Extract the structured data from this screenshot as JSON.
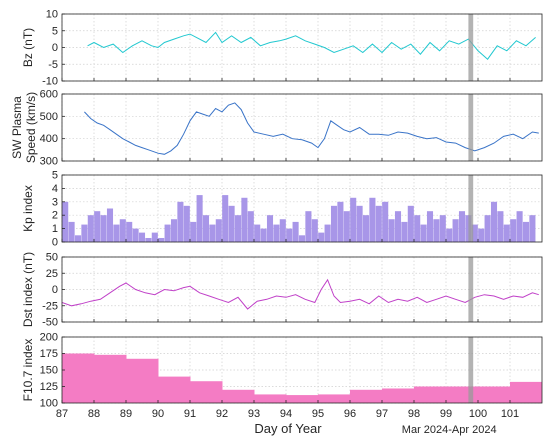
{
  "chart_data": {
    "type": "multi-panel",
    "xlabel": "Day of Year",
    "x_range": [
      87,
      102
    ],
    "x_ticks": [
      "87",
      "88",
      "89",
      "90",
      "91",
      "92",
      "93",
      "94",
      "95",
      "96",
      "97",
      "98",
      "99",
      "100",
      "101"
    ],
    "date_note": "Mar 2024-Apr 2024",
    "highlight_band": [
      99.7,
      99.85
    ],
    "grid": "dotted",
    "panels": [
      {
        "ylabel": "Bz (nT)",
        "type": "line",
        "color": "#22c8d0",
        "ylim": [
          -10,
          10
        ],
        "y_ticks": [
          "-10",
          "-5",
          "0",
          "5",
          "10"
        ],
        "x": [
          87.8,
          88.0,
          88.3,
          88.6,
          88.9,
          89.2,
          89.5,
          89.8,
          90.0,
          90.2,
          90.5,
          90.8,
          91.0,
          91.2,
          91.5,
          91.8,
          92.0,
          92.3,
          92.6,
          92.9,
          93.2,
          93.5,
          93.8,
          94.0,
          94.3,
          94.6,
          94.9,
          95.2,
          95.5,
          95.8,
          96.1,
          96.4,
          96.7,
          97.0,
          97.3,
          97.6,
          97.9,
          98.2,
          98.5,
          98.8,
          99.1,
          99.4,
          99.7,
          100.0,
          100.3,
          100.6,
          100.9,
          101.2,
          101.5,
          101.8
        ],
        "values": [
          0.5,
          1.5,
          0.0,
          1.0,
          -1.5,
          0.5,
          2.0,
          0.5,
          0.0,
          1.5,
          2.5,
          3.5,
          4.0,
          3.0,
          1.5,
          4.5,
          1.5,
          3.5,
          1.5,
          3.0,
          0.5,
          1.5,
          2.0,
          2.5,
          3.5,
          2.0,
          1.0,
          0.0,
          -1.5,
          -0.5,
          0.5,
          -1.5,
          1.0,
          -1.5,
          1.5,
          -0.5,
          1.0,
          -2.0,
          1.5,
          -1.0,
          2.0,
          1.0,
          2.5,
          -1.0,
          -3.5,
          0.5,
          -1.0,
          2.0,
          0.5,
          3.0
        ]
      },
      {
        "ylabel": "SW Plasma Speed (km/s)",
        "type": "line",
        "color": "#3a74c8",
        "ylim": [
          300,
          600
        ],
        "y_ticks": [
          "300",
          "400",
          "500",
          "600"
        ],
        "x": [
          87.7,
          87.9,
          88.1,
          88.3,
          88.5,
          88.7,
          88.9,
          89.1,
          89.3,
          89.5,
          89.7,
          90.0,
          90.2,
          90.4,
          90.6,
          90.8,
          91.0,
          91.2,
          91.4,
          91.6,
          91.8,
          92.0,
          92.2,
          92.4,
          92.6,
          92.8,
          93.0,
          93.3,
          93.6,
          93.9,
          94.2,
          94.5,
          94.8,
          95.0,
          95.2,
          95.4,
          95.6,
          95.8,
          96.0,
          96.3,
          96.6,
          96.9,
          97.2,
          97.5,
          97.8,
          98.1,
          98.4,
          98.7,
          99.0,
          99.3,
          99.6,
          99.9,
          100.2,
          100.5,
          100.8,
          101.1,
          101.4,
          101.7,
          101.9
        ],
        "values": [
          520,
          490,
          470,
          460,
          440,
          420,
          400,
          385,
          370,
          360,
          350,
          335,
          330,
          345,
          370,
          420,
          480,
          520,
          510,
          500,
          535,
          520,
          550,
          560,
          530,
          470,
          430,
          420,
          410,
          420,
          400,
          395,
          380,
          360,
          400,
          480,
          460,
          440,
          430,
          450,
          420,
          420,
          415,
          430,
          425,
          410,
          400,
          405,
          385,
          380,
          360,
          345,
          360,
          380,
          410,
          420,
          400,
          430,
          425
        ]
      },
      {
        "ylabel": "Kp index",
        "type": "bar",
        "color": "#a896e8",
        "ylim": [
          0,
          5
        ],
        "y_ticks": [
          "0",
          "1",
          "2",
          "3",
          "4",
          "5"
        ],
        "x": [
          87.1,
          87.3,
          87.5,
          87.7,
          87.9,
          88.1,
          88.3,
          88.5,
          88.7,
          88.9,
          89.1,
          89.3,
          89.5,
          89.7,
          89.9,
          90.1,
          90.3,
          90.5,
          90.7,
          90.9,
          91.1,
          91.3,
          91.5,
          91.7,
          91.9,
          92.1,
          92.3,
          92.5,
          92.7,
          92.9,
          93.1,
          93.3,
          93.5,
          93.7,
          93.9,
          94.1,
          94.3,
          94.5,
          94.7,
          94.9,
          95.1,
          95.3,
          95.5,
          95.7,
          95.9,
          96.1,
          96.3,
          96.5,
          96.7,
          96.9,
          97.1,
          97.3,
          97.5,
          97.7,
          97.9,
          98.1,
          98.3,
          98.5,
          98.7,
          98.9,
          99.1,
          99.3,
          99.5,
          99.7,
          99.9,
          100.1,
          100.3,
          100.5,
          100.7,
          100.9,
          101.1,
          101.3,
          101.5,
          101.7
        ],
        "values": [
          3.0,
          1.5,
          0.5,
          1.3,
          2.0,
          2.3,
          2.0,
          2.5,
          1.3,
          1.7,
          1.5,
          1.0,
          0.7,
          0.3,
          0.7,
          0.3,
          1.3,
          1.7,
          3.0,
          2.7,
          1.5,
          3.5,
          2.0,
          1.3,
          1.7,
          3.5,
          2.7,
          2.0,
          3.3,
          2.3,
          1.3,
          1.0,
          2.0,
          1.3,
          1.7,
          1.0,
          1.5,
          0.5,
          2.3,
          1.7,
          0.7,
          1.3,
          2.7,
          3.0,
          2.3,
          3.3,
          2.7,
          2.0,
          3.3,
          2.7,
          3.0,
          1.7,
          2.3,
          1.5,
          2.7,
          2.0,
          1.3,
          2.3,
          1.7,
          2.0,
          1.0,
          1.7,
          2.3,
          2.0,
          1.3,
          1.0,
          2.0,
          3.0,
          2.3,
          1.3,
          1.7,
          2.3,
          1.5,
          2.0
        ]
      },
      {
        "ylabel": "Dst index (nT)",
        "type": "line",
        "color": "#c040c8",
        "ylim": [
          -50,
          50
        ],
        "y_ticks": [
          "-50",
          "-25",
          "0",
          "25",
          "50"
        ],
        "x": [
          87.0,
          87.3,
          87.6,
          87.9,
          88.2,
          88.5,
          88.8,
          89.0,
          89.3,
          89.6,
          89.9,
          90.2,
          90.5,
          90.8,
          91.0,
          91.3,
          91.6,
          91.9,
          92.2,
          92.5,
          92.8,
          93.1,
          93.4,
          93.7,
          94.0,
          94.3,
          94.6,
          94.9,
          95.1,
          95.3,
          95.5,
          95.7,
          96.0,
          96.3,
          96.6,
          96.9,
          97.2,
          97.5,
          97.8,
          98.1,
          98.4,
          98.7,
          99.0,
          99.3,
          99.6,
          99.9,
          100.2,
          100.5,
          100.8,
          101.1,
          101.4,
          101.7,
          101.9
        ],
        "values": [
          -20,
          -25,
          -22,
          -18,
          -15,
          -5,
          5,
          10,
          0,
          -5,
          -8,
          0,
          -2,
          3,
          5,
          -5,
          -10,
          -15,
          -20,
          -12,
          -30,
          -18,
          -15,
          -10,
          -12,
          -8,
          -15,
          -20,
          0,
          15,
          -10,
          -20,
          -18,
          -15,
          -22,
          -10,
          -20,
          -15,
          -18,
          -12,
          -20,
          -15,
          -10,
          -15,
          -20,
          -12,
          -8,
          -10,
          -15,
          -10,
          -12,
          -5,
          -8
        ]
      },
      {
        "ylabel": "F10.7 index",
        "type": "step-area",
        "color": "#f47cc4",
        "ylim": [
          100,
          200
        ],
        "y_ticks": [
          "100",
          "125",
          "150",
          "175",
          "200"
        ],
        "x": [
          87,
          88,
          89,
          90,
          91,
          92,
          93,
          94,
          95,
          96,
          97,
          98,
          99,
          100,
          101
        ],
        "values": [
          175,
          173,
          167,
          140,
          133,
          120,
          113,
          112,
          113,
          120,
          122,
          125,
          125,
          125,
          132
        ]
      }
    ]
  }
}
